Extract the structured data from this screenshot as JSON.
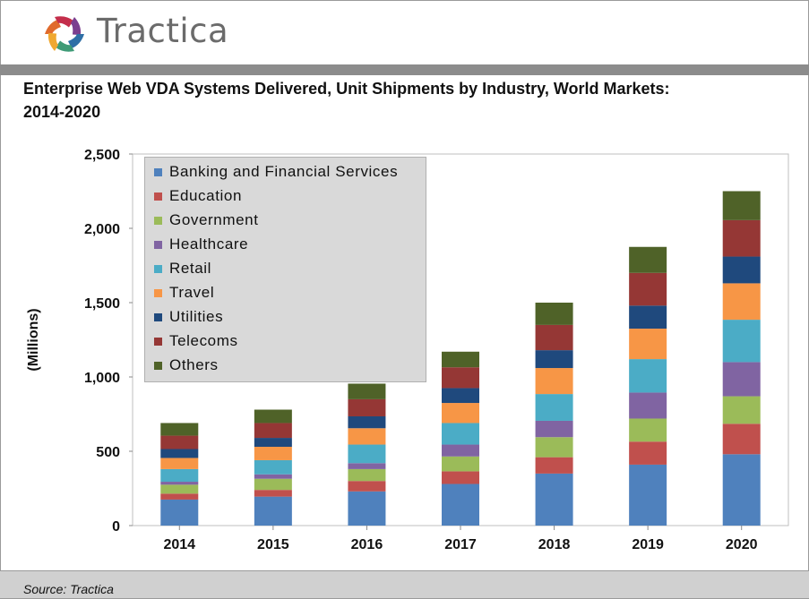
{
  "header": {
    "brand": "Tractica",
    "logo_icon": "tractica-logo-icon",
    "logo_colors": [
      "#e06a2c",
      "#c42e4b",
      "#7b3f8f",
      "#2f6fa6",
      "#3f9b77",
      "#f0a830"
    ]
  },
  "title_lines": [
    "Enterprise Web VDA Systems Delivered, Unit Shipments by Industry, World Markets:",
    "2014-2020"
  ],
  "footer": {
    "source": "Source: Tractica"
  },
  "chart_data": {
    "type": "bar",
    "stacked": true,
    "categories": [
      "2014",
      "2015",
      "2016",
      "2017",
      "2018",
      "2019",
      "2020"
    ],
    "ylabel": "(Millions)",
    "ylim": [
      0,
      2500
    ],
    "yticks": [
      0,
      500,
      1000,
      1500,
      2000,
      2500
    ],
    "ytick_labels": [
      "0",
      "500",
      "1,000",
      "1,500",
      "2,000",
      "2,500"
    ],
    "grid": false,
    "legend_position": "top-left, inside plot",
    "series": [
      {
        "name": "Banking and Financial Services",
        "color": "#4f81bd",
        "values": [
          175,
          195,
          230,
          280,
          350,
          410,
          480
        ]
      },
      {
        "name": "Education",
        "color": "#c0504d",
        "values": [
          40,
          45,
          70,
          85,
          110,
          155,
          205
        ]
      },
      {
        "name": "Government",
        "color": "#9bbb59",
        "values": [
          60,
          75,
          80,
          100,
          135,
          155,
          185
        ]
      },
      {
        "name": "Healthcare",
        "color": "#8064a2",
        "values": [
          20,
          30,
          40,
          80,
          110,
          175,
          230
        ]
      },
      {
        "name": "Retail",
        "color": "#4bacc6",
        "values": [
          85,
          95,
          125,
          145,
          180,
          225,
          285
        ]
      },
      {
        "name": "Travel",
        "color": "#f79646",
        "values": [
          75,
          90,
          110,
          135,
          175,
          205,
          245
        ]
      },
      {
        "name": "Utilities",
        "color": "#1f497d",
        "values": [
          60,
          60,
          80,
          100,
          120,
          155,
          180
        ]
      },
      {
        "name": "Telecoms",
        "color": "#953735",
        "values": [
          90,
          100,
          115,
          140,
          170,
          220,
          245
        ]
      },
      {
        "name": "Others",
        "color": "#4f6228",
        "values": [
          85,
          90,
          105,
          105,
          150,
          175,
          195
        ]
      }
    ]
  }
}
